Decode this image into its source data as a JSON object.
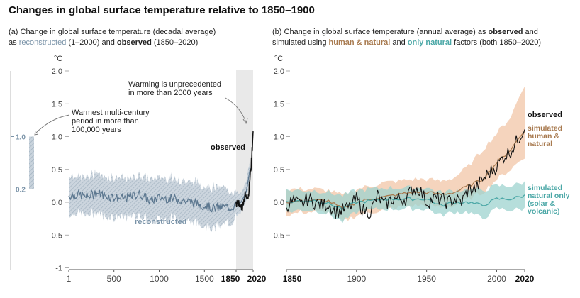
{
  "title": "Changes in global surface temperature relative to 1850–1900",
  "panel_a": {
    "label_prefix": "(a) Change in global surface temperature (decadal average)",
    "label_as": "as ",
    "label_recon": "reconstructed",
    "label_recon_years": " (1–2000) and ",
    "label_obs": "observed",
    "label_obs_years": " (1850–2020)",
    "unit": "°C",
    "annotation_warming": [
      "Warming is unprecedented",
      "in more than 2000 years"
    ],
    "annotation_warmest": [
      "Warmest multi-century",
      "period in more than",
      "100,000 years"
    ],
    "label_observed_line": "observed",
    "label_reconstructed_line": "reconstructed",
    "side_bar_top": "1.0",
    "side_bar_bottom": "0.2"
  },
  "panel_b": {
    "label_line1_prefix": "(b) Change in global surface temperature (annual average) as ",
    "label_line1_obs": "observed",
    "label_line1_suffix": " and",
    "label_line2_prefix": "simulated using ",
    "label_line2_human": "human & natural",
    "label_line2_mid": " and ",
    "label_line2_natural": "only natural",
    "label_line2_suffix": " factors (both 1850–2020)",
    "unit": "°C",
    "legend_observed": "observed",
    "legend_human": [
      "simulated",
      "human &",
      "natural"
    ],
    "legend_natural": [
      "simulated",
      "natural only",
      "(solar &",
      "volcanic)"
    ]
  },
  "colors": {
    "reconstructed": "#7a93a8",
    "reconstructed_band": "#b4c2cf",
    "observed": "#111111",
    "human_natural": "#a87a4f",
    "human_natural_band": "#f3cdb1",
    "natural_only": "#4aa7a6",
    "natural_only_band": "#9dd3cf",
    "shade": "#e9e9e9"
  },
  "chart_data": [
    {
      "type": "line",
      "panel": "a",
      "ylabel": "°C",
      "ylim": [
        -1,
        2
      ],
      "yticks": [
        "-1",
        "-0.5",
        "0.0",
        "0.5",
        "1.0",
        "1.5",
        "2.0"
      ],
      "yticks_values": [
        -1,
        -0.5,
        0,
        0.5,
        1,
        1.5,
        2
      ],
      "xticks": [
        "1",
        "500",
        "1000",
        "1500",
        "1850",
        "2020"
      ],
      "xticks_values": [
        1,
        500,
        1000,
        1500,
        1850,
        2020
      ],
      "series": [
        {
          "name": "reconstructed",
          "x": [
            1,
            100,
            200,
            300,
            400,
            500,
            600,
            700,
            800,
            900,
            1000,
            1100,
            1200,
            1300,
            1400,
            1500,
            1600,
            1700,
            1800,
            1850,
            1900,
            1950,
            2000
          ],
          "values": [
            0.1,
            0.12,
            0.08,
            0.15,
            0.1,
            0.08,
            0.05,
            0.1,
            0.12,
            0.02,
            0.07,
            0.06,
            0.05,
            0.02,
            -0.02,
            -0.05,
            -0.1,
            -0.07,
            -0.08,
            -0.03,
            0.0,
            0.15,
            0.6
          ],
          "band_low": [
            -0.2,
            -0.15,
            -0.2,
            -0.15,
            -0.2,
            -0.22,
            -0.25,
            -0.2,
            -0.2,
            -0.3,
            -0.25,
            -0.25,
            -0.25,
            -0.28,
            -0.32,
            -0.35,
            -0.4,
            -0.35,
            -0.3,
            -0.2,
            -0.15,
            0.0,
            0.45
          ],
          "band_high": [
            0.42,
            0.4,
            0.38,
            0.45,
            0.4,
            0.38,
            0.35,
            0.38,
            0.42,
            0.35,
            0.38,
            0.38,
            0.35,
            0.32,
            0.3,
            0.25,
            0.22,
            0.22,
            0.18,
            0.15,
            0.15,
            0.3,
            0.75
          ]
        },
        {
          "name": "observed",
          "x": [
            1850,
            1860,
            1870,
            1880,
            1890,
            1900,
            1910,
            1920,
            1930,
            1940,
            1950,
            1960,
            1970,
            1980,
            1990,
            2000,
            2010,
            2020
          ],
          "values": [
            -0.05,
            0.0,
            -0.02,
            0.0,
            -0.1,
            -0.05,
            -0.1,
            0.0,
            0.05,
            0.12,
            0.08,
            0.1,
            0.08,
            0.2,
            0.4,
            0.55,
            0.8,
            1.08
          ]
        }
      ]
    },
    {
      "type": "line",
      "panel": "b",
      "ylabel": "°C",
      "ylim": [
        -1,
        2
      ],
      "yticks": [
        "-0.5",
        "0.0",
        "0.5",
        "1.0",
        "1.5",
        "2.0"
      ],
      "yticks_values": [
        -0.5,
        0,
        0.5,
        1,
        1.5,
        2
      ],
      "xticks": [
        "1850",
        "1900",
        "1950",
        "2000",
        "2020"
      ],
      "xticks_values": [
        1850,
        1900,
        1950,
        2000,
        2020
      ],
      "series": [
        {
          "name": "observed",
          "x": [
            1850,
            1855,
            1860,
            1865,
            1870,
            1875,
            1880,
            1885,
            1890,
            1895,
            1900,
            1905,
            1910,
            1915,
            1920,
            1925,
            1930,
            1935,
            1940,
            1945,
            1950,
            1955,
            1960,
            1965,
            1970,
            1975,
            1980,
            1985,
            1990,
            1995,
            2000,
            2005,
            2010,
            2015,
            2020
          ],
          "values": [
            -0.05,
            0.02,
            -0.05,
            0.05,
            0.0,
            -0.05,
            -0.02,
            -0.15,
            -0.12,
            -0.08,
            0.05,
            -0.12,
            -0.15,
            0.1,
            -0.05,
            0.05,
            0.05,
            0.05,
            0.2,
            0.2,
            0.0,
            0.05,
            0.05,
            0.0,
            0.05,
            0.0,
            0.2,
            0.2,
            0.35,
            0.45,
            0.55,
            0.7,
            0.78,
            0.95,
            1.15
          ]
        },
        {
          "name": "simulated human & natural",
          "x": [
            1850,
            1860,
            1870,
            1880,
            1890,
            1900,
            1910,
            1920,
            1930,
            1940,
            1950,
            1960,
            1970,
            1980,
            1990,
            2000,
            2010,
            2020
          ],
          "values": [
            0.0,
            0.02,
            0.03,
            0.02,
            -0.1,
            0.0,
            0.05,
            0.08,
            0.12,
            0.15,
            0.15,
            0.12,
            0.15,
            0.25,
            0.35,
            0.6,
            0.8,
            1.1
          ],
          "band_low": [
            -0.2,
            -0.15,
            -0.15,
            -0.15,
            -0.3,
            -0.2,
            -0.15,
            -0.12,
            -0.08,
            -0.05,
            -0.05,
            -0.08,
            -0.05,
            0.05,
            0.15,
            0.35,
            0.5,
            0.7
          ],
          "band_high": [
            0.2,
            0.2,
            0.2,
            0.18,
            0.1,
            0.2,
            0.25,
            0.3,
            0.32,
            0.35,
            0.35,
            0.32,
            0.38,
            0.55,
            0.8,
            1.05,
            1.3,
            1.8
          ]
        },
        {
          "name": "simulated natural only (solar & volcanic)",
          "x": [
            1850,
            1860,
            1870,
            1880,
            1890,
            1900,
            1910,
            1920,
            1930,
            1940,
            1950,
            1960,
            1970,
            1980,
            1990,
            2000,
            2010,
            2020
          ],
          "values": [
            0.0,
            0.02,
            0.03,
            -0.02,
            -0.1,
            0.0,
            0.02,
            0.05,
            0.05,
            0.05,
            0.05,
            -0.05,
            0.0,
            0.0,
            -0.05,
            0.05,
            0.05,
            0.1
          ],
          "band_low": [
            -0.15,
            -0.12,
            -0.12,
            -0.18,
            -0.3,
            -0.15,
            -0.12,
            -0.1,
            -0.1,
            -0.1,
            -0.1,
            -0.2,
            -0.15,
            -0.15,
            -0.25,
            -0.1,
            -0.12,
            -0.1
          ],
          "band_high": [
            0.18,
            0.18,
            0.18,
            0.15,
            0.1,
            0.18,
            0.2,
            0.22,
            0.22,
            0.22,
            0.22,
            0.15,
            0.18,
            0.2,
            0.18,
            0.25,
            0.25,
            0.3
          ]
        }
      ]
    }
  ]
}
